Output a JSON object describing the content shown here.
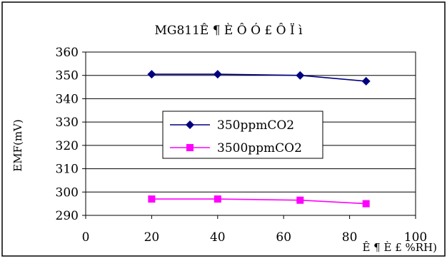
{
  "chart_data": {
    "type": "line",
    "title": "MG811Ê ¶ È Ô Ó £ Ô Ï ì",
    "ylabel": "EMF(mV)",
    "xlabel": "Ê ¶ È £ %RH)",
    "xlim": [
      0,
      100
    ],
    "ylim": [
      290,
      360
    ],
    "x_ticks": [
      0,
      20,
      40,
      60,
      80,
      100
    ],
    "y_ticks": [
      290,
      300,
      310,
      320,
      330,
      340,
      350,
      360
    ],
    "x": [
      20,
      40,
      65,
      85
    ],
    "series": [
      {
        "name": "350ppmCO2",
        "values": [
          350.5,
          350.5,
          350,
          347.5
        ],
        "color": "#000080",
        "marker": "diamond"
      },
      {
        "name": "3500ppmCO2",
        "values": [
          297,
          297,
          296.5,
          295
        ],
        "color": "#FF00FF",
        "marker": "square"
      }
    ],
    "grid": "horizontal",
    "legend_position": "center"
  }
}
